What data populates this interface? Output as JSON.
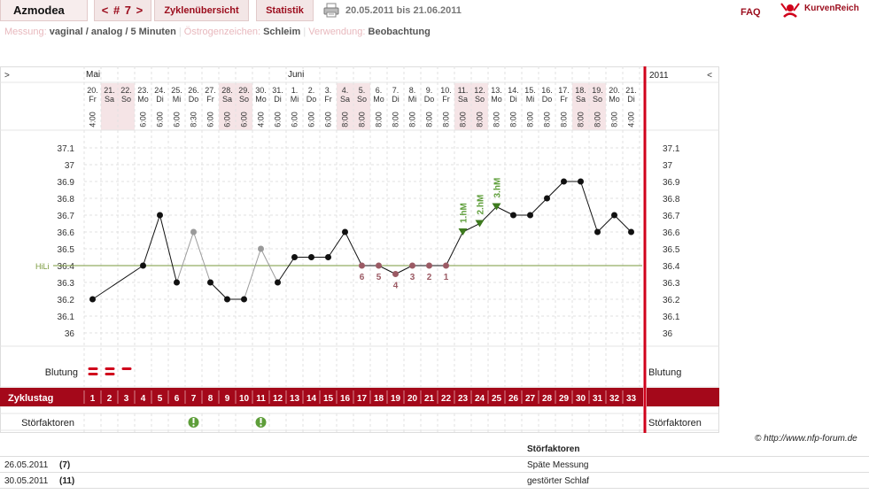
{
  "header": {
    "app_name": "Azmodea",
    "cycle_nav": "< # 7 >",
    "tabs": [
      "Zyklenübersicht",
      "Statistik"
    ],
    "date_range": "20.05.2011 bis 21.06.2011",
    "faq": "FAQ",
    "logo_text": "KurvenReich"
  },
  "meta": {
    "measure_label": "Messung:",
    "measure_value": "vaginal / analog / 5 Minuten",
    "estrogen_label": "Östrogenzeichen:",
    "estrogen_value": "Schleim",
    "usage_label": "Verwendung:",
    "usage_value": "Beobachtung"
  },
  "chart_data": {
    "type": "line",
    "months": [
      {
        "label": "Mai",
        "day_index": 0
      },
      {
        "label": "Juni",
        "day_index": 12
      }
    ],
    "year": "2011",
    "nav_prev": ">",
    "nav_next": "<",
    "dates": [
      "20.",
      "21.",
      "22.",
      "23.",
      "24.",
      "25.",
      "26.",
      "27.",
      "28.",
      "29.",
      "30.",
      "31.",
      "1.",
      "2.",
      "3.",
      "4.",
      "5.",
      "6.",
      "7.",
      "8.",
      "9.",
      "10.",
      "11.",
      "12.",
      "13.",
      "14.",
      "15.",
      "16.",
      "17.",
      "18.",
      "19.",
      "20.",
      "21."
    ],
    "weekdays": [
      "Fr",
      "Sa",
      "So",
      "Mo",
      "Di",
      "Mi",
      "Do",
      "Fr",
      "Sa",
      "So",
      "Mo",
      "Di",
      "Mi",
      "Do",
      "Fr",
      "Sa",
      "So",
      "Mo",
      "Di",
      "Mi",
      "Do",
      "Fr",
      "Sa",
      "So",
      "Mo",
      "Di",
      "Mi",
      "Do",
      "Fr",
      "Sa",
      "So",
      "Mo",
      "Di"
    ],
    "times": [
      "4:00",
      "",
      "",
      "6:00",
      "6:00",
      "6:00",
      "8:30",
      "6:00",
      "6:00",
      "6:00",
      "4:00",
      "6:00",
      "6:00",
      "6:00",
      "6:00",
      "8:00",
      "8:00",
      "8:00",
      "8:00",
      "8:00",
      "8:00",
      "8:00",
      "8:00",
      "8:00",
      "8:00",
      "8:00",
      "8:00",
      "8:00",
      "8:00",
      "8:00",
      "8:00",
      "8:00",
      "4:00"
    ],
    "temperatures": [
      36.2,
      null,
      null,
      36.4,
      36.7,
      36.3,
      36.6,
      36.3,
      36.2,
      36.2,
      36.5,
      36.3,
      36.45,
      36.45,
      36.45,
      36.6,
      36.4,
      36.4,
      36.35,
      36.4,
      36.4,
      36.4,
      36.6,
      36.65,
      36.75,
      36.7,
      36.7,
      36.8,
      36.9,
      36.9,
      36.6,
      36.7,
      36.6
    ],
    "excluded_days": [
      6,
      10
    ],
    "low_marks": [
      {
        "day": 16,
        "label": "6"
      },
      {
        "day": 17,
        "label": "5"
      },
      {
        "day": 18,
        "label": "4"
      },
      {
        "day": 19,
        "label": "3"
      },
      {
        "day": 20,
        "label": "2"
      },
      {
        "day": 21,
        "label": "1"
      }
    ],
    "high_marks": [
      {
        "day": 22,
        "label": "1.hM"
      },
      {
        "day": 23,
        "label": "2.hM"
      },
      {
        "day": 24,
        "label": "3.hM"
      }
    ],
    "hili_label": "HiLi",
    "hili_value": 36.4,
    "y_ticks": [
      "37.1",
      "37",
      "36.9",
      "36.8",
      "36.7",
      "36.6",
      "36.5",
      "36.4",
      "36.3",
      "36.2",
      "36.1",
      "36"
    ],
    "ylim": [
      36,
      37.1
    ],
    "bleeding_label": "Blutung",
    "bleeding": [
      {
        "day": 0,
        "strength": "strong"
      },
      {
        "day": 1,
        "strength": "strong"
      },
      {
        "day": 2,
        "strength": "light"
      }
    ],
    "cycle_day_label": "Zyklustag",
    "cycle_days": [
      "1",
      "2",
      "3",
      "4",
      "5",
      "6",
      "7",
      "8",
      "9",
      "10",
      "11",
      "12",
      "13",
      "14",
      "15",
      "16",
      "17",
      "18",
      "19",
      "20",
      "21",
      "22",
      "23",
      "24",
      "25",
      "26",
      "27",
      "28",
      "29",
      "30",
      "31",
      "32",
      "33"
    ],
    "disturbance_label": "Störfaktoren",
    "disturbance_days": [
      6,
      10
    ],
    "weekend_days": [
      1,
      2,
      8,
      9,
      15,
      16,
      22,
      23,
      29,
      30
    ]
  },
  "credit": "© http://www.nfp-forum.de",
  "notes": {
    "header": "Störfaktoren",
    "rows": [
      {
        "date": "26.05.2011",
        "cycle": "(7)",
        "text": "Späte Messung"
      },
      {
        "date": "30.05.2011",
        "cycle": "(11)",
        "text": "gestörter Schlaf"
      }
    ]
  }
}
